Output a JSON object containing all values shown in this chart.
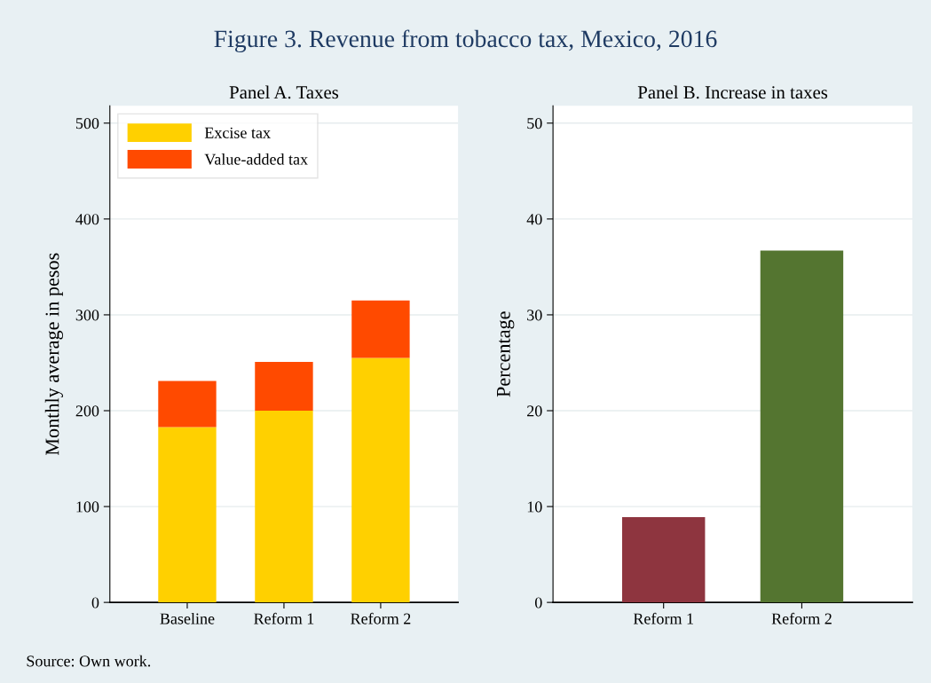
{
  "chart_data": [
    {
      "type": "bar",
      "title": "Panel A. Taxes",
      "ylabel": "Monthly average in pesos",
      "categories": [
        "Baseline",
        "Reform 1",
        "Reform 2"
      ],
      "stacked": true,
      "series": [
        {
          "name": "Excise tax",
          "color": "#ffd000",
          "values": [
            183,
            200,
            255
          ]
        },
        {
          "name": "Value-added tax",
          "color": "#ff4a00",
          "values": [
            48,
            51,
            60
          ]
        }
      ],
      "ylim": [
        0,
        518
      ],
      "yticks": [
        0,
        100,
        200,
        300,
        400,
        500
      ],
      "grid": "y",
      "legend": "top left",
      "annotations": [
        "Figure 3. Revenue from tobacco tax, Mexico, 2016",
        "Source: Own work."
      ]
    },
    {
      "type": "bar",
      "title": "Panel B. Increase in taxes",
      "ylabel": "Percentage",
      "categories": [
        "Reform 1",
        "Reform 2"
      ],
      "values": [
        8.9,
        36.7
      ],
      "colors": [
        "#8e353f",
        "#547530"
      ],
      "ylim": [
        0,
        51.8
      ],
      "yticks": [
        0,
        10,
        20,
        30,
        40,
        50
      ],
      "grid": "y"
    }
  ]
}
